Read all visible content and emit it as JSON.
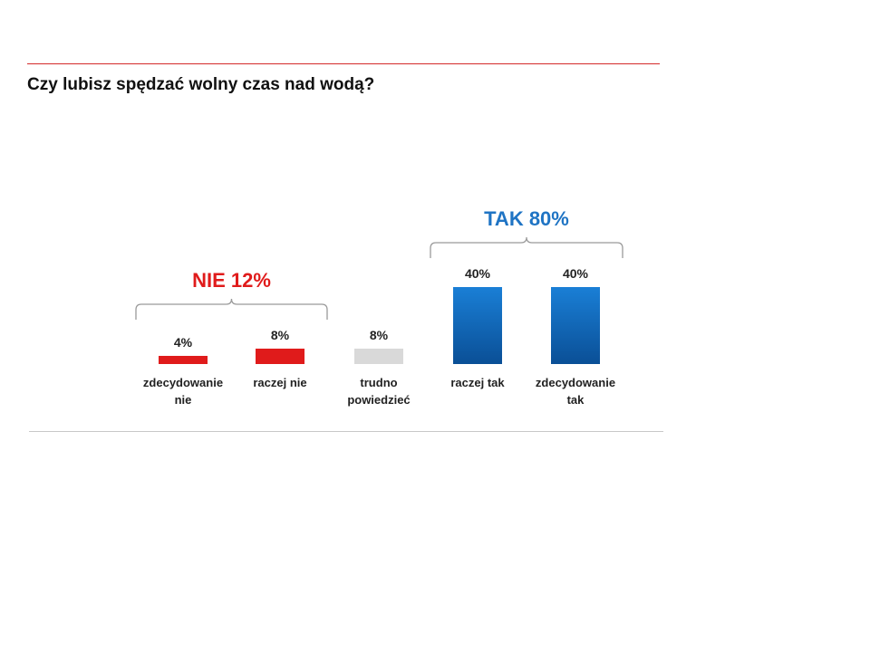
{
  "title": "Czy lubisz spędzać wolny czas nad wodą?",
  "colors": {
    "rule_top": "#d42a2a",
    "rule_bottom": "#c8c8c8",
    "nie": "#e01b1b",
    "neutral": "#d9d9d9",
    "tak_top": "#1a7fd6",
    "tak_bottom": "#0a4f96",
    "group_nie_text": "#e01b1b",
    "group_tak_text": "#1f74c4",
    "brace": "#9a9a9a"
  },
  "chart_data": {
    "type": "bar",
    "title": "Czy lubisz spędzać wolny czas nad wodą?",
    "categories": [
      [
        "zdecydowanie",
        "nie"
      ],
      [
        "raczej nie"
      ],
      [
        "trudno",
        "powiedzieć"
      ],
      [
        "raczej tak"
      ],
      [
        "zdecydowanie",
        "tak"
      ]
    ],
    "values": [
      4,
      8,
      8,
      40,
      40
    ],
    "value_labels": [
      "4%",
      "8%",
      "8%",
      "40%",
      "40%"
    ],
    "bar_color_keys": [
      "nie",
      "nie",
      "neutral",
      "tak",
      "tak"
    ],
    "ylim": [
      0,
      40
    ],
    "xlabel": "",
    "ylabel": "",
    "grid": false,
    "groups": [
      {
        "label": "NIE 12%",
        "from": 0,
        "to": 1,
        "color_key": "group_nie_text"
      },
      {
        "label": "TAK 80%",
        "from": 3,
        "to": 4,
        "color_key": "group_tak_text"
      }
    ]
  }
}
